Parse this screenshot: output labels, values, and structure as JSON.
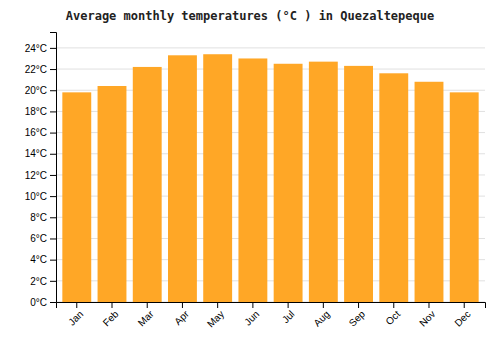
{
  "chart_data": {
    "type": "bar",
    "title": "Average monthly temperatures (°C ) in Quezaltepeque",
    "categories": [
      "Jan",
      "Feb",
      "Mar",
      "Apr",
      "May",
      "Jun",
      "Jul",
      "Aug",
      "Sep",
      "Oct",
      "Nov",
      "Dec"
    ],
    "values": [
      19.8,
      20.4,
      22.2,
      23.3,
      23.4,
      23.0,
      22.5,
      22.7,
      22.3,
      21.6,
      20.8,
      19.8
    ],
    "color": "#FFA726",
    "ylim": [
      0,
      25.5
    ],
    "yticks": [
      {
        "value": 0,
        "label": "0°C"
      },
      {
        "value": 2,
        "label": "2°C"
      },
      {
        "value": 4,
        "label": "4°C"
      },
      {
        "value": 6,
        "label": "6°C"
      },
      {
        "value": 8,
        "label": "8°C"
      },
      {
        "value": 10,
        "label": "10°C"
      },
      {
        "value": 12,
        "label": "12°C"
      },
      {
        "value": 14,
        "label": "14°C"
      },
      {
        "value": 16,
        "label": "16°C"
      },
      {
        "value": 18,
        "label": "18°C"
      },
      {
        "value": 20,
        "label": "20°C"
      },
      {
        "value": 22,
        "label": "22°C"
      },
      {
        "value": 24,
        "label": "24°C"
      }
    ],
    "grid": true
  }
}
